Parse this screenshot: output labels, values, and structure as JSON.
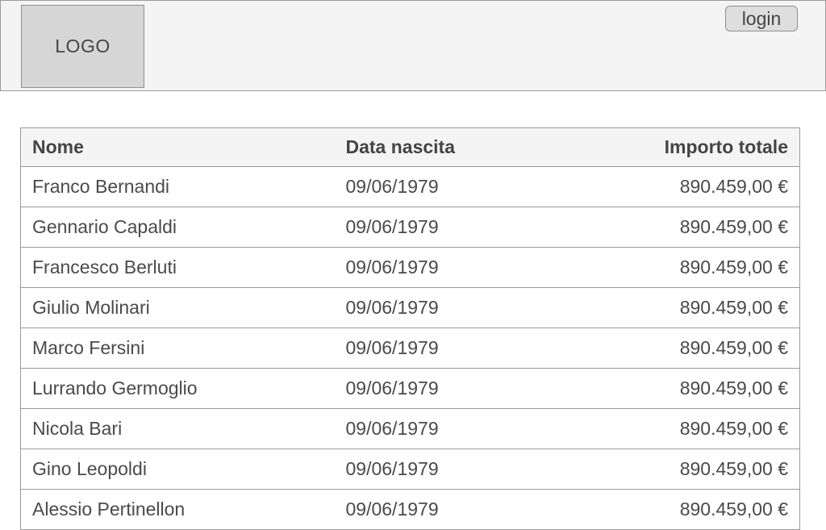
{
  "header": {
    "logo_text": "LOGO",
    "login_label": "login"
  },
  "table": {
    "columns": [
      "Nome",
      "Data nascita",
      "Importo totale"
    ],
    "rows": [
      {
        "nome": "Franco Bernandi",
        "data": "09/06/1979",
        "importo": "890.459,00 €"
      },
      {
        "nome": "Gennario Capaldi",
        "data": "09/06/1979",
        "importo": "890.459,00 €"
      },
      {
        "nome": "Francesco Berluti",
        "data": "09/06/1979",
        "importo": "890.459,00 €"
      },
      {
        "nome": "Giulio Molinari",
        "data": "09/06/1979",
        "importo": "890.459,00 €"
      },
      {
        "nome": "Marco Fersini",
        "data": "09/06/1979",
        "importo": "890.459,00 €"
      },
      {
        "nome": "Lurrando Germoglio",
        "data": "09/06/1979",
        "importo": "890.459,00 €"
      },
      {
        "nome": "Nicola Bari",
        "data": "09/06/1979",
        "importo": "890.459,00 €"
      },
      {
        "nome": "Gino Leopoldi",
        "data": "09/06/1979",
        "importo": "890.459,00 €"
      },
      {
        "nome": "Alessio Pertinellon",
        "data": "09/06/1979",
        "importo": "890.459,00 €"
      }
    ]
  }
}
